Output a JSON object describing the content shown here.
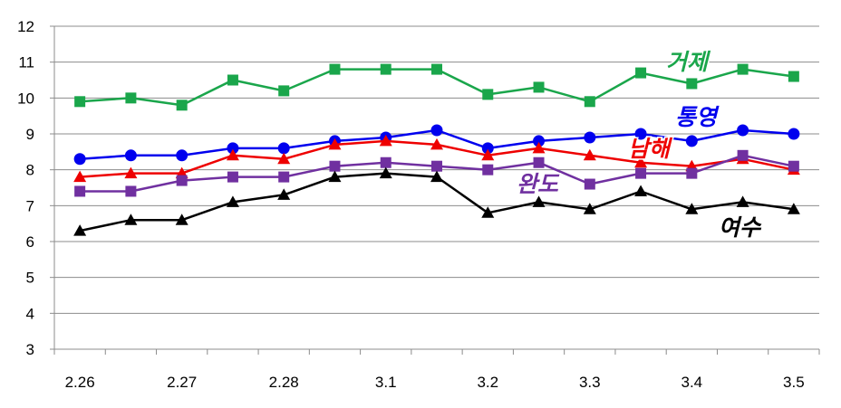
{
  "chart_data": {
    "type": "line",
    "title": "",
    "xlabel": "",
    "ylabel": "",
    "ylim": [
      3,
      12
    ],
    "yticks": [
      3,
      4,
      5,
      6,
      7,
      8,
      9,
      10,
      11,
      12
    ],
    "x_tick_labels": [
      "2.26",
      "2.27",
      "2.28",
      "3.1",
      "3.2",
      "3.3",
      "3.4",
      "3.5"
    ],
    "grid": "horizontal",
    "legend": "inline labels",
    "series": [
      {
        "name": "거제",
        "color": "#1aa64b",
        "marker": "square",
        "values": [
          9.9,
          10.0,
          9.8,
          10.5,
          10.2,
          10.8,
          10.8,
          10.8,
          10.1,
          10.3,
          9.9,
          10.7,
          10.4,
          10.8,
          10.6
        ]
      },
      {
        "name": "통영",
        "color": "#0000ee",
        "marker": "circle",
        "values": [
          8.3,
          8.4,
          8.4,
          8.6,
          8.6,
          8.8,
          8.9,
          9.1,
          8.6,
          8.8,
          8.9,
          9.0,
          8.8,
          9.1,
          9.0
        ]
      },
      {
        "name": "남해",
        "color": "#ee0000",
        "marker": "triangle",
        "values": [
          7.8,
          7.9,
          7.9,
          8.4,
          8.3,
          8.7,
          8.8,
          8.7,
          8.4,
          8.6,
          8.4,
          8.2,
          8.1,
          8.3,
          8.0
        ]
      },
      {
        "name": "완도",
        "color": "#7030a0",
        "marker": "square",
        "values": [
          7.4,
          7.4,
          7.7,
          7.8,
          7.8,
          8.1,
          8.2,
          8.1,
          8.0,
          8.2,
          7.6,
          7.9,
          7.9,
          8.4,
          8.1
        ]
      },
      {
        "name": "여수",
        "color": "#000000",
        "marker": "triangle",
        "values": [
          6.3,
          6.6,
          6.6,
          7.1,
          7.3,
          7.8,
          7.9,
          7.8,
          6.8,
          7.1,
          6.9,
          7.4,
          6.9,
          7.1,
          6.9
        ]
      }
    ]
  }
}
